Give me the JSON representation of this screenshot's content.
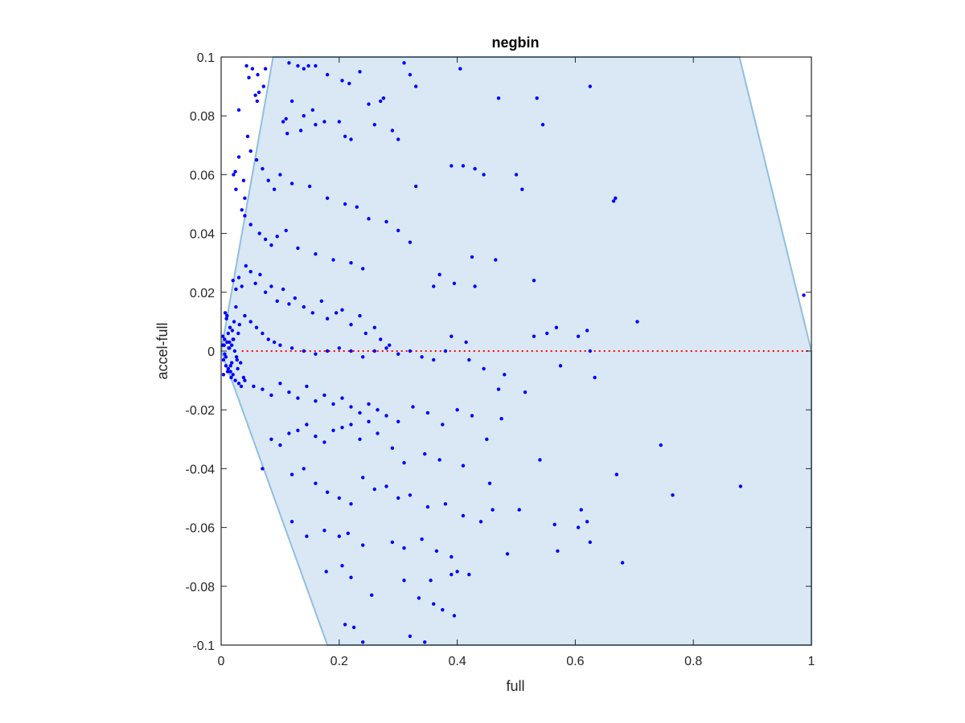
{
  "chart_data": {
    "type": "scatter",
    "title": "negbin",
    "xlabel": "full",
    "ylabel": "accel-full",
    "xlim": [
      0,
      1
    ],
    "ylim": [
      -0.1,
      0.1
    ],
    "xticks": [
      0,
      0.2,
      0.4,
      0.6,
      0.8,
      1
    ],
    "xtick_labels": [
      "0",
      "0.2",
      "0.4",
      "0.6",
      "0.8",
      "1"
    ],
    "yticks": [
      -0.1,
      -0.08,
      -0.06,
      -0.04,
      -0.02,
      0,
      0.02,
      0.04,
      0.06,
      0.08,
      0.1
    ],
    "ytick_labels": [
      "-0.1",
      "-0.08",
      "-0.06",
      "-0.04",
      "-0.02",
      "0",
      "0.02",
      "0.04",
      "0.06",
      "0.08",
      "0.1"
    ],
    "grid": false,
    "colors": {
      "points": "#0000ff",
      "region_fill": "#d9e8f4",
      "region_edge": "#8fbfe0",
      "reference_line": "#ff0000",
      "axes": "#262626"
    },
    "shaded_region": {
      "polygon": [
        [
          0.0,
          0.0
        ],
        [
          0.088,
          0.1
        ],
        [
          0.878,
          0.1
        ],
        [
          1.0,
          0.0
        ],
        [
          1.0,
          -0.1
        ],
        [
          0.18,
          -0.1
        ]
      ]
    },
    "reference_line": {
      "y": 0,
      "style": "dotted",
      "x_range": [
        0.035,
        1.0
      ]
    },
    "series": [
      {
        "x": [
          0.043,
          0.047,
          0.053,
          0.064,
          0.058,
          0.062,
          0.061,
          0.075,
          0.072,
          0.03,
          0.03,
          0.024,
          0.021,
          0.025,
          0.038,
          0.04,
          0.115,
          0.13,
          0.14,
          0.148,
          0.16,
          0.18,
          0.205,
          0.217,
          0.235,
          0.25,
          0.27,
          0.275,
          0.31,
          0.32,
          0.33,
          0.405,
          0.12,
          0.105,
          0.11,
          0.14,
          0.155,
          0.16,
          0.175,
          0.135,
          0.112,
          0.2,
          0.21,
          0.22,
          0.26,
          0.29,
          0.3,
          0.33,
          0.39,
          0.41,
          0.43,
          0.445,
          0.5,
          0.51,
          0.47,
          0.535,
          0.545,
          0.625,
          0.665,
          0.668,
          0.987,
          0.045,
          0.05,
          0.06,
          0.07,
          0.08,
          0.09,
          0.1,
          0.12,
          0.15,
          0.18,
          0.21,
          0.23,
          0.25,
          0.28,
          0.3,
          0.32,
          0.035,
          0.04,
          0.05,
          0.065,
          0.075,
          0.085,
          0.095,
          0.11,
          0.13,
          0.16,
          0.19,
          0.22,
          0.24,
          0.37,
          0.395,
          0.43,
          0.465,
          0.425,
          0.36,
          0.53,
          0.62,
          0.705,
          0.605,
          0.53,
          0.552,
          0.568,
          0.39,
          0.415,
          0.02,
          0.025,
          0.03,
          0.035,
          0.042,
          0.05,
          0.058,
          0.066,
          0.075,
          0.085,
          0.095,
          0.105,
          0.115,
          0.125,
          0.14,
          0.155,
          0.17,
          0.18,
          0.195,
          0.205,
          0.22,
          0.235,
          0.245,
          0.26,
          0.27,
          0.285,
          0.04,
          0.05,
          0.06,
          0.07,
          0.08,
          0.09,
          0.1,
          0.12,
          0.14,
          0.16,
          0.18,
          0.2,
          0.22,
          0.24,
          0.26,
          0.28,
          0.3,
          0.32,
          0.34,
          0.36,
          0.38,
          0.42,
          0.445,
          0.47,
          0.48,
          0.515,
          0.575,
          0.625,
          0.633,
          0.04,
          0.055,
          0.07,
          0.085,
          0.1,
          0.115,
          0.13,
          0.145,
          0.16,
          0.175,
          0.19,
          0.205,
          0.22,
          0.235,
          0.25,
          0.265,
          0.28,
          0.3,
          0.325,
          0.35,
          0.375,
          0.4,
          0.425,
          0.45,
          0.475,
          0.07,
          0.085,
          0.1,
          0.115,
          0.13,
          0.145,
          0.16,
          0.175,
          0.19,
          0.205,
          0.22,
          0.235,
          0.25,
          0.265,
          0.29,
          0.31,
          0.345,
          0.37,
          0.41,
          0.455,
          0.54,
          0.67,
          0.745,
          0.765,
          0.88,
          0.12,
          0.14,
          0.16,
          0.18,
          0.2,
          0.22,
          0.24,
          0.26,
          0.28,
          0.3,
          0.32,
          0.35,
          0.38,
          0.41,
          0.44,
          0.46,
          0.505,
          0.565,
          0.61,
          0.62,
          0.605,
          0.12,
          0.145,
          0.175,
          0.2,
          0.215,
          0.24,
          0.29,
          0.31,
          0.34,
          0.365,
          0.39,
          0.485,
          0.57,
          0.625,
          0.68,
          0.178,
          0.205,
          0.22,
          0.255,
          0.31,
          0.355,
          0.39,
          0.4,
          0.42,
          0.335,
          0.21,
          0.225,
          0.24,
          0.32,
          0.345,
          0.36,
          0.375,
          0.395,
          0.01,
          0.015,
          0.02,
          0.025,
          0.005,
          0.008,
          0.012,
          0.018,
          0.022,
          0.028,
          0.003,
          0.006,
          0.009,
          0.014,
          0.016,
          0.019,
          0.023,
          0.027,
          0.031,
          0.004,
          0.007,
          0.011,
          0.013,
          0.017,
          0.021,
          0.026,
          0.029,
          0.033,
          0.002,
          0.004,
          0.006,
          0.008,
          0.01,
          0.012,
          0.014,
          0.016,
          0.018,
          0.02,
          0.024,
          0.03,
          0.034,
          0.038
        ],
        "y": [
          0.097,
          0.093,
          0.096,
          0.088,
          0.087,
          0.094,
          0.085,
          0.096,
          0.09,
          0.082,
          0.066,
          0.061,
          0.06,
          0.055,
          0.058,
          0.052,
          0.098,
          0.097,
          0.096,
          0.097,
          0.097,
          0.094,
          0.092,
          0.091,
          0.095,
          0.084,
          0.085,
          0.086,
          0.098,
          0.094,
          0.09,
          0.096,
          0.085,
          0.078,
          0.079,
          0.08,
          0.082,
          0.077,
          0.078,
          0.075,
          0.074,
          0.078,
          0.073,
          0.072,
          0.077,
          0.075,
          0.072,
          0.056,
          0.063,
          0.063,
          0.062,
          0.06,
          0.06,
          0.055,
          0.086,
          0.086,
          0.077,
          0.09,
          0.051,
          0.052,
          0.019,
          0.073,
          0.068,
          0.065,
          0.062,
          0.058,
          0.055,
          0.06,
          0.057,
          0.056,
          0.052,
          0.05,
          0.049,
          0.045,
          0.044,
          0.041,
          0.037,
          0.048,
          0.046,
          0.043,
          0.04,
          0.038,
          0.036,
          0.039,
          0.041,
          0.035,
          0.033,
          0.031,
          0.03,
          0.028,
          0.026,
          0.023,
          0.022,
          0.031,
          0.032,
          0.022,
          0.024,
          0.007,
          0.01,
          0.005,
          0.005,
          0.006,
          0.008,
          0.005,
          0.003,
          0.024,
          0.021,
          0.025,
          0.022,
          0.029,
          0.027,
          0.023,
          0.026,
          0.02,
          0.022,
          0.017,
          0.021,
          0.016,
          0.018,
          0.015,
          0.013,
          0.017,
          0.011,
          0.013,
          0.014,
          0.009,
          0.012,
          0.006,
          0.008,
          0.004,
          0.002,
          0.012,
          0.01,
          0.008,
          0.006,
          0.004,
          0.003,
          0.002,
          0.001,
          0.0,
          -0.001,
          0.0,
          0.001,
          0.0,
          -0.002,
          0.0,
          0.001,
          -0.001,
          0.0,
          -0.002,
          -0.003,
          0.0,
          -0.003,
          -0.006,
          -0.013,
          -0.008,
          -0.014,
          -0.005,
          0.0,
          -0.009,
          -0.01,
          -0.012,
          -0.013,
          -0.015,
          -0.011,
          -0.014,
          -0.016,
          -0.012,
          -0.017,
          -0.015,
          -0.018,
          -0.016,
          -0.019,
          -0.021,
          -0.018,
          -0.02,
          -0.022,
          -0.024,
          -0.019,
          -0.021,
          -0.025,
          -0.02,
          -0.022,
          -0.03,
          -0.023,
          -0.04,
          -0.03,
          -0.032,
          -0.028,
          -0.027,
          -0.025,
          -0.029,
          -0.031,
          -0.027,
          -0.026,
          -0.025,
          -0.03,
          -0.024,
          -0.028,
          -0.033,
          -0.038,
          -0.035,
          -0.037,
          -0.039,
          -0.045,
          -0.037,
          -0.042,
          -0.032,
          -0.049,
          -0.046,
          -0.042,
          -0.04,
          -0.045,
          -0.048,
          -0.05,
          -0.052,
          -0.043,
          -0.047,
          -0.046,
          -0.05,
          -0.049,
          -0.053,
          -0.052,
          -0.056,
          -0.058,
          -0.054,
          -0.054,
          -0.059,
          -0.054,
          -0.058,
          -0.06,
          -0.058,
          -0.063,
          -0.061,
          -0.063,
          -0.062,
          -0.066,
          -0.065,
          -0.067,
          -0.064,
          -0.068,
          -0.07,
          -0.069,
          -0.068,
          -0.065,
          -0.072,
          -0.075,
          -0.073,
          -0.077,
          -0.083,
          -0.078,
          -0.078,
          -0.076,
          -0.075,
          -0.076,
          -0.084,
          -0.093,
          -0.094,
          -0.099,
          -0.097,
          -0.099,
          -0.086,
          -0.088,
          -0.09,
          0.012,
          0.008,
          0.004,
          0.015,
          0.002,
          -0.002,
          0.006,
          -0.004,
          0.01,
          -0.006,
          0.005,
          -0.001,
          0.011,
          0.003,
          -0.005,
          0.007,
          0.0,
          -0.003,
          0.009,
          -0.008,
          0.013,
          -0.007,
          0.001,
          -0.009,
          0.004,
          -0.002,
          0.006,
          -0.004,
          0.002,
          -0.003,
          0.004,
          -0.005,
          0.003,
          -0.006,
          0.001,
          -0.007,
          0.002,
          -0.008,
          -0.01,
          -0.011,
          -0.012,
          -0.009
        ]
      }
    ]
  }
}
